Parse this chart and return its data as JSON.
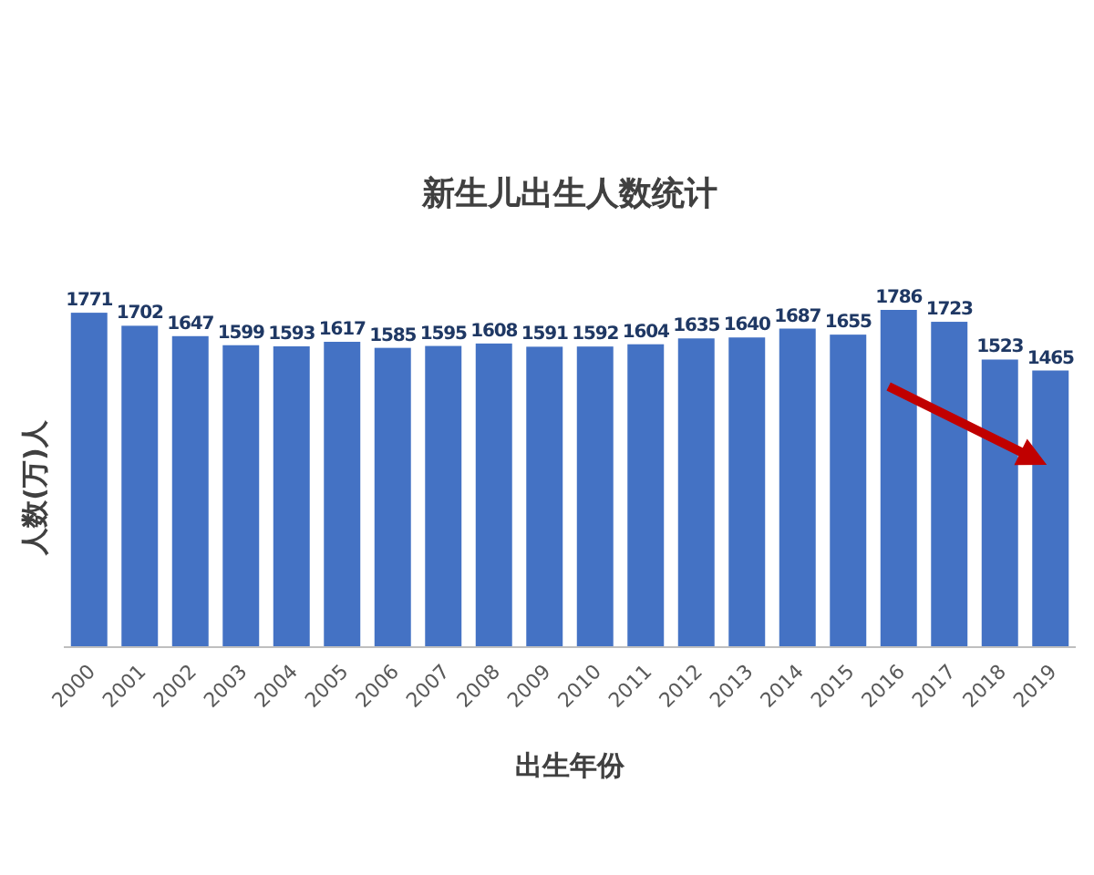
{
  "chart_data": {
    "type": "bar",
    "title": "新生儿出生人数统计",
    "xlabel": "出生年份",
    "ylabel": "人数(万)人",
    "categories": [
      "2000",
      "2001",
      "2002",
      "2003",
      "2004",
      "2005",
      "2006",
      "2007",
      "2008",
      "2009",
      "2010",
      "2011",
      "2012",
      "2013",
      "2014",
      "2015",
      "2016",
      "2017",
      "2018",
      "2019"
    ],
    "values": [
      1771,
      1702,
      1647,
      1599,
      1593,
      1617,
      1585,
      1595,
      1608,
      1591,
      1592,
      1604,
      1635,
      1640,
      1687,
      1655,
      1786,
      1723,
      1523,
      1465
    ],
    "color": "#4472c4",
    "data_labels": true
  }
}
